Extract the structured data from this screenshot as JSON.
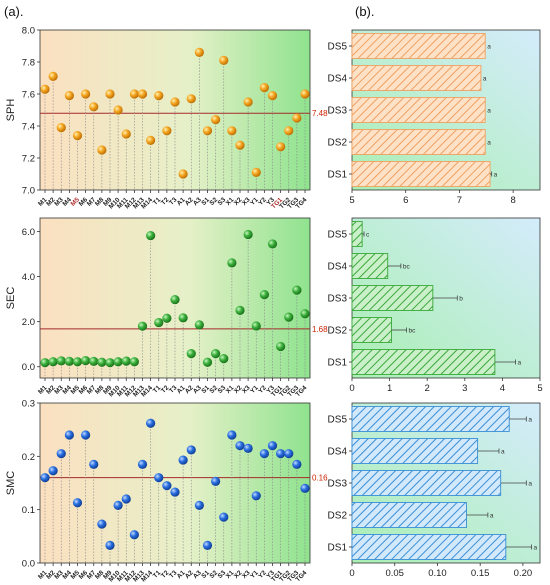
{
  "panel_labels": {
    "a": "(a).",
    "b": "(b)."
  },
  "chart_data": [
    {
      "id": "sph_scatter",
      "type": "scatter",
      "ylabel": "SPH",
      "ylim": [
        7.0,
        8.0
      ],
      "yticks": [
        "7.0",
        "7.2",
        "7.4",
        "7.6",
        "7.8",
        "8.0"
      ],
      "yticks_values": [
        7.0,
        7.2,
        7.4,
        7.6,
        7.8,
        8.0
      ],
      "mean": 7.48,
      "mean_label": "7.48",
      "color": "#f39c12",
      "x": [
        "M1",
        "M2",
        "M3",
        "M4",
        "M5",
        "M6",
        "M7",
        "M8",
        "M9",
        "M10",
        "M11",
        "M12",
        "M13",
        "M14",
        "T1",
        "T2",
        "T3",
        "A1",
        "A2",
        "A3",
        "S1",
        "S2",
        "S3",
        "X1",
        "X2",
        "X3",
        "Y1",
        "Y2",
        "Y3",
        "TG1",
        "TG2",
        "TG3",
        "TG4"
      ],
      "values": [
        7.63,
        7.71,
        7.39,
        7.59,
        7.34,
        7.6,
        7.52,
        7.25,
        7.6,
        7.5,
        7.35,
        7.6,
        7.6,
        7.31,
        7.59,
        7.37,
        7.55,
        7.1,
        7.57,
        7.86,
        7.37,
        7.44,
        7.81,
        7.37,
        7.28,
        7.55,
        7.11,
        7.64,
        7.59,
        7.27,
        7.37,
        7.45,
        7.6
      ]
    },
    {
      "id": "sec_scatter",
      "type": "scatter",
      "ylabel": "SEC",
      "ylim": [
        -0.5,
        6.6
      ],
      "yticks": [
        "0.0",
        "2.0",
        "4.0",
        "6.0"
      ],
      "yticks_values": [
        0,
        2,
        4,
        6
      ],
      "mean": 1.68,
      "mean_label": "1.68",
      "color": "#3aa83a",
      "x": [
        "M1",
        "M2",
        "M3",
        "M4",
        "M5",
        "M6",
        "M7",
        "M8",
        "M9",
        "M10",
        "M11",
        "M12",
        "M13",
        "M14",
        "T1",
        "T2",
        "T3",
        "A1",
        "A2",
        "A3",
        "S1",
        "S2",
        "S3",
        "X1",
        "X2",
        "X3",
        "Y1",
        "Y2",
        "Y3",
        "TG1",
        "TG2",
        "TG3",
        "TG4"
      ],
      "values": [
        0.18,
        0.22,
        0.26,
        0.24,
        0.22,
        0.27,
        0.24,
        0.2,
        0.18,
        0.22,
        0.25,
        0.22,
        1.8,
        5.82,
        1.96,
        2.15,
        2.98,
        2.17,
        0.58,
        1.86,
        0.2,
        0.58,
        0.36,
        4.61,
        2.5,
        5.87,
        1.81,
        3.2,
        5.45,
        0.9,
        2.2,
        3.4,
        2.35
      ]
    },
    {
      "id": "smc_scatter",
      "type": "scatter",
      "ylabel": "SMC",
      "ylim": [
        0,
        0.3
      ],
      "yticks": [
        "0.0",
        "0.1",
        "0.2",
        "0.3"
      ],
      "yticks_values": [
        0,
        0.1,
        0.2,
        0.3
      ],
      "mean": 0.16,
      "mean_label": "0.16",
      "color": "#1a5fd6",
      "x": [
        "M1",
        "M2",
        "M3",
        "M4",
        "M5",
        "M6",
        "M7",
        "M8",
        "M9",
        "M10",
        "M11",
        "M12",
        "M13",
        "M14",
        "T1",
        "T2",
        "T3",
        "A1",
        "A2",
        "A3",
        "S1",
        "S2",
        "S3",
        "X1",
        "X2",
        "X3",
        "Y1",
        "Y2",
        "Y3",
        "TG1",
        "TG2",
        "TG3",
        "TG4"
      ],
      "values": [
        0.16,
        0.173,
        0.205,
        0.24,
        0.113,
        0.24,
        0.185,
        0.073,
        0.033,
        0.108,
        0.12,
        0.053,
        0.185,
        0.262,
        0.16,
        0.145,
        0.133,
        0.193,
        0.212,
        0.108,
        0.033,
        0.153,
        0.086,
        0.24,
        0.22,
        0.215,
        0.126,
        0.205,
        0.22,
        0.205,
        0.205,
        0.185,
        0.14
      ]
    },
    {
      "id": "sph_bar",
      "type": "bar",
      "orientation": "horizontal",
      "xlim": [
        5,
        8.5
      ],
      "xticks": [
        "5",
        "6",
        "7",
        "8"
      ],
      "xticks_values": [
        5,
        6,
        7,
        8
      ],
      "color": "#f0a060",
      "categories": [
        "DS5",
        "DS4",
        "DS3",
        "DS2",
        "DS1"
      ],
      "values": [
        7.48,
        7.4,
        7.48,
        7.48,
        7.57
      ],
      "errors": [
        0.0,
        0.0,
        0.0,
        0.0,
        0.03
      ],
      "letters": [
        "a",
        "a",
        "a",
        "a",
        "a"
      ]
    },
    {
      "id": "sec_bar",
      "type": "bar",
      "orientation": "horizontal",
      "xlim": [
        0,
        5
      ],
      "xticks": [
        "0",
        "1",
        "2",
        "3",
        "4",
        "5"
      ],
      "xticks_values": [
        0,
        1,
        2,
        3,
        4,
        5
      ],
      "color": "#3aa83a",
      "categories": [
        "DS5",
        "DS4",
        "DS3",
        "DS2",
        "DS1"
      ],
      "values": [
        0.27,
        0.95,
        2.15,
        1.05,
        3.8
      ],
      "errors": [
        0.05,
        0.35,
        0.65,
        0.4,
        0.55
      ],
      "letters": [
        "c",
        "bc",
        "b",
        "bc",
        "a"
      ]
    },
    {
      "id": "smc_bar",
      "type": "bar",
      "orientation": "horizontal",
      "xlim": [
        0,
        0.22
      ],
      "xticks": [
        "0",
        "0.05",
        "0.10",
        "0.15",
        "0.20"
      ],
      "xticks_values": [
        0,
        0.05,
        0.1,
        0.15,
        0.2
      ],
      "color": "#3a8fd6",
      "categories": [
        "DS5",
        "DS4",
        "DS3",
        "DS2",
        "DS1"
      ],
      "values": [
        0.184,
        0.147,
        0.174,
        0.134,
        0.18
      ],
      "errors": [
        0.02,
        0.025,
        0.03,
        0.025,
        0.03
      ],
      "letters": [
        "a",
        "a",
        "a",
        "a",
        "a"
      ]
    }
  ]
}
